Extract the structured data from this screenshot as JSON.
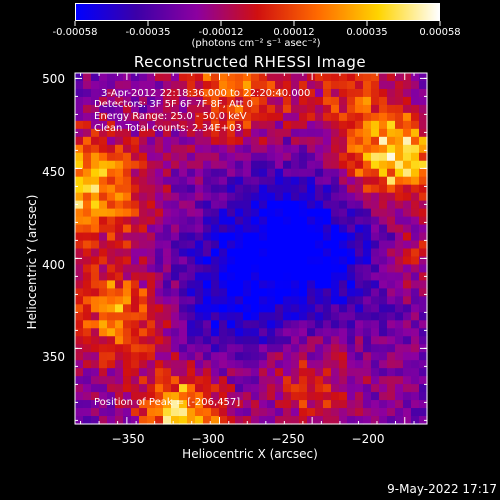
{
  "colorbar": {
    "tick_labels": [
      "-0.00058",
      "-0.00035",
      "-0.00012",
      "0.00012",
      "0.00035",
      "0.00058"
    ],
    "units": "(photons cm⁻² s⁻¹ asec⁻²)",
    "colors": [
      "#0000ff",
      "#3c00a8",
      "#8c00a0",
      "#d01010",
      "#ff6a00",
      "#ffd400",
      "#ffffff"
    ]
  },
  "chart_data": {
    "type": "heatmap",
    "title": "Reconstructed RHESSI Image",
    "xlabel": "Heliocentric X (arcsec)",
    "ylabel": "Heliocentric Y (arcsec)",
    "xlim": [
      -378,
      -188
    ],
    "ylim": [
      308,
      503
    ],
    "xticks": [
      -350,
      -300,
      -250,
      -200
    ],
    "xtick_labels": [
      "−350",
      "−300",
      "−250",
      "−200"
    ],
    "yticks": [
      350,
      400,
      450,
      500
    ],
    "ytick_labels": [
      "350",
      "400",
      "450",
      "500"
    ],
    "value_range": [
      -0.00058,
      0.00058
    ],
    "annotations": [
      "3-Apr-2012 22:18:36.000 to 22:20:40.000",
      "Detectors: 3F 5F 6F 7F 8F, Att 0",
      "Energy Range: 25.0 - 50.0 keV",
      "Clean    Total counts: 2.34E+03"
    ],
    "peak_label": "Position of Peak = [-206,457]",
    "peak": [
      -206,
      457
    ]
  },
  "timestamp": "9-May-2022 17:17"
}
